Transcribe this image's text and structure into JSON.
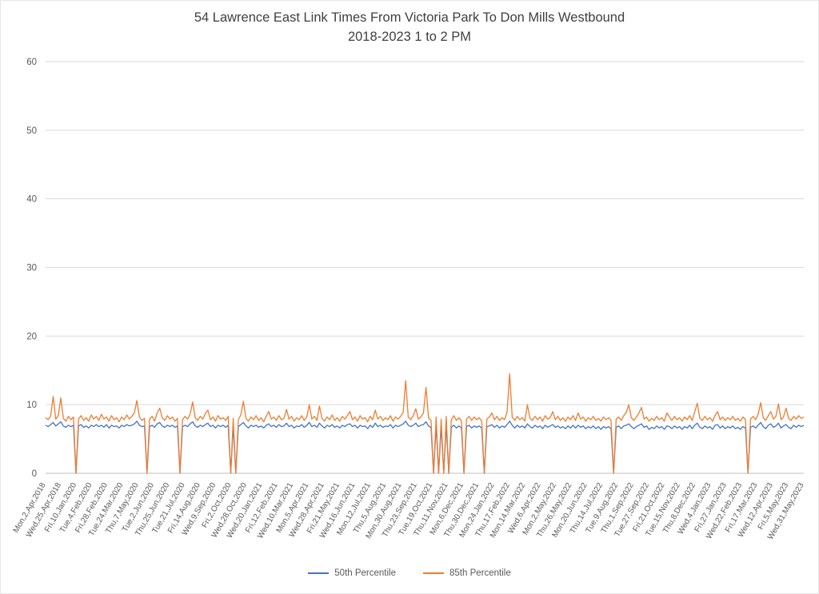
{
  "chart_data": {
    "type": "line",
    "title": "54 Lawrence East Link Times From Victoria Park To Don Mills Westbound",
    "subtitle": "2018-2023 1 to 2 PM",
    "ylim": [
      0,
      60
    ],
    "yticks": [
      0,
      10,
      20,
      30,
      40,
      50,
      60
    ],
    "grid": true,
    "legend_position": "bottom",
    "gridline_color": "#d9d9d9",
    "axis_label_color": "#595959",
    "categories": [
      "Mon,2,Apr,2018",
      "Wed,25,Apr,2018",
      "Fri,10,Jan,2020",
      "Tue,4,Feb,2020",
      "Fri,28,Feb,2020",
      "Tue,24,Mar,2020",
      "Thu,7,May,2020",
      "Tue,2,Jun,2020",
      "Thu,25,Jun,2020",
      "Tue,21,Jul,2020",
      "Fri,14,Aug,2020",
      "Wed,9,Sep,2020",
      "Fri,2,Oct,2020",
      "Wed,28,Oct,2020",
      "Wed,20,Jan,2021",
      "Fri,12,Feb,2021",
      "Wed,10,Mar,2021",
      "Mon,5,Apr,2021",
      "Wed,28,Apr,2021",
      "Fri,21,May,2021",
      "Wed,16,Jun,2021",
      "Mon,12,Jul,2021",
      "Thu,5,Aug,2021",
      "Mon,30,Aug,2021",
      "Thu,23,Sep,2021",
      "Tue,19,Oct,2021",
      "Thu,11,Nov,2021",
      "Mon,6,Dec,2021",
      "Thu,30,Dec,2021",
      "Mon,24,Jan,2022",
      "Thu,17,Feb,2022",
      "Mon,14,Mar,2022",
      "Wed,6,Apr,2022",
      "Mon,2,May,2022",
      "Thu,26,May,2022",
      "Mon,20,Jun,2022",
      "Thu,14,Jul,2022",
      "Tue,9,Aug,2022",
      "Thu,1,Sep,2022",
      "Tue,27,Sep,2022",
      "Fri,21,Oct,2022",
      "Tue,15,Nov,2022",
      "Thu,8,Dec,2022",
      "Wed,4,Jan,2023",
      "Fri,27,Jan,2023",
      "Wed,22,Feb,2023",
      "Fri,17,Mar,2023",
      "Wed,12,Apr,2023",
      "Fri,5,May,2023",
      "Wed,31,May,2023"
    ],
    "series": [
      {
        "name": "50th Percentile",
        "color": "#4472c4",
        "values": [
          7.0,
          6.8,
          7.1,
          7.4,
          6.9,
          7.2,
          7.5,
          6.9,
          6.7,
          7.0,
          6.8,
          7.0,
          0,
          6.9,
          7.1,
          6.7,
          6.9,
          6.6,
          7.0,
          6.8,
          7.1,
          6.8,
          7.0,
          6.7,
          7.1,
          6.6,
          7.0,
          6.8,
          6.9,
          6.6,
          7.0,
          6.8,
          7.1,
          6.9,
          7.0,
          7.2,
          7.6,
          7.0,
          6.8,
          6.9,
          0,
          6.8,
          7.0,
          6.7,
          7.2,
          7.4,
          6.9,
          6.7,
          7.0,
          6.8,
          7.0,
          6.7,
          6.9,
          0,
          6.8,
          7.0,
          6.8,
          7.2,
          7.5,
          6.9,
          6.7,
          7.0,
          6.8,
          7.1,
          7.3,
          6.8,
          7.0,
          6.6,
          7.0,
          6.8,
          7.0,
          6.7,
          7.0,
          0,
          6.9,
          0,
          6.8,
          7.1,
          7.4,
          6.9,
          6.6,
          7.0,
          6.8,
          7.0,
          6.7,
          6.9,
          6.6,
          7.0,
          7.2,
          6.8,
          7.0,
          6.7,
          7.1,
          6.8,
          6.9,
          7.3,
          6.8,
          7.0,
          6.6,
          6.9,
          6.8,
          7.1,
          6.7,
          7.0,
          7.4,
          6.8,
          7.0,
          6.7,
          7.3,
          6.9,
          6.6,
          7.0,
          6.8,
          7.1,
          6.7,
          6.9,
          6.6,
          7.0,
          6.8,
          7.1,
          7.2,
          6.8,
          7.0,
          6.6,
          7.0,
          6.8,
          6.9,
          6.5,
          7.0,
          6.7,
          7.3,
          6.8,
          7.0,
          6.7,
          6.9,
          6.8,
          7.1,
          6.6,
          7.0,
          6.8,
          7.0,
          7.2,
          7.6,
          7.0,
          6.8,
          7.0,
          7.3,
          6.8,
          7.0,
          7.1,
          7.5,
          6.9,
          6.7,
          0,
          7.0,
          0,
          6.8,
          0,
          7.0,
          0,
          6.7,
          7.0,
          6.6,
          6.9,
          6.6,
          0,
          6.8,
          7.0,
          6.6,
          6.9,
          6.7,
          6.9,
          6.6,
          0,
          6.8,
          6.9,
          7.1,
          6.7,
          7.0,
          6.6,
          6.9,
          6.7,
          7.1,
          7.6,
          7.0,
          6.6,
          7.0,
          6.7,
          6.9,
          6.6,
          7.2,
          6.8,
          6.6,
          7.0,
          6.7,
          6.9,
          6.5,
          7.0,
          6.7,
          6.9,
          7.1,
          6.7,
          6.9,
          6.6,
          6.8,
          6.5,
          6.9,
          6.6,
          7.0,
          6.6,
          7.0,
          6.7,
          6.9,
          6.5,
          6.8,
          6.6,
          6.9,
          6.5,
          6.8,
          6.4,
          6.8,
          6.6,
          6.8,
          6.5,
          0,
          6.7,
          6.9,
          6.5,
          6.9,
          7.0,
          7.2,
          6.8,
          6.5,
          6.8,
          7.0,
          7.2,
          6.7,
          6.9,
          6.4,
          6.7,
          6.5,
          6.9,
          6.6,
          6.8,
          6.4,
          6.9,
          6.8,
          6.5,
          6.9,
          6.6,
          6.8,
          6.4,
          6.8,
          6.6,
          7.0,
          6.5,
          7.0,
          7.3,
          6.7,
          6.5,
          6.9,
          6.6,
          6.8,
          6.4,
          7.0,
          7.1,
          6.6,
          6.9,
          6.5,
          6.8,
          6.6,
          6.9,
          6.5,
          6.7,
          6.4,
          6.8,
          6.6,
          0,
          6.7,
          6.9,
          6.6,
          7.0,
          7.4,
          6.8,
          6.5,
          7.0,
          7.2,
          6.7,
          6.9,
          7.3,
          6.6,
          6.9,
          7.1,
          6.7,
          6.5,
          7.0,
          6.7,
          7.0,
          6.8,
          7.0
        ]
      },
      {
        "name": "85th Percentile",
        "color": "#ed7d31",
        "values": [
          8.1,
          7.8,
          8.3,
          11.2,
          7.9,
          8.4,
          11.0,
          8.0,
          7.6,
          8.3,
          7.8,
          8.2,
          0,
          7.9,
          8.4,
          7.7,
          8.1,
          7.6,
          8.5,
          7.9,
          8.3,
          7.7,
          8.6,
          7.9,
          8.2,
          7.6,
          8.4,
          7.8,
          8.1,
          7.5,
          8.2,
          7.8,
          8.5,
          7.9,
          8.3,
          8.8,
          10.6,
          8.2,
          7.7,
          8.0,
          0,
          7.9,
          8.3,
          7.6,
          8.8,
          9.5,
          8.1,
          7.7,
          8.4,
          7.9,
          8.2,
          7.6,
          8.0,
          0,
          7.8,
          8.3,
          7.9,
          8.6,
          10.4,
          8.1,
          7.7,
          8.3,
          7.9,
          8.7,
          9.2,
          7.8,
          8.2,
          7.6,
          8.4,
          7.9,
          8.1,
          7.7,
          8.3,
          0,
          8.0,
          0,
          7.8,
          8.5,
          10.5,
          8.0,
          7.6,
          8.2,
          7.8,
          8.4,
          7.7,
          8.1,
          7.5,
          8.3,
          9.0,
          7.9,
          8.2,
          7.7,
          8.4,
          7.8,
          8.0,
          9.3,
          7.9,
          8.3,
          7.6,
          8.1,
          7.8,
          8.4,
          7.7,
          8.2,
          10.0,
          7.9,
          8.3,
          7.7,
          9.8,
          8.0,
          7.6,
          8.2,
          7.8,
          8.5,
          7.7,
          8.1,
          7.6,
          8.3,
          7.9,
          8.4,
          9.0,
          7.8,
          8.2,
          7.6,
          8.4,
          7.9,
          8.1,
          7.5,
          8.3,
          7.8,
          9.2,
          7.9,
          8.3,
          7.7,
          8.1,
          7.8,
          8.4,
          7.6,
          8.2,
          7.9,
          8.3,
          8.9,
          13.5,
          8.2,
          7.8,
          8.4,
          9.4,
          7.9,
          8.2,
          8.8,
          12.5,
          8.1,
          7.7,
          0,
          8.2,
          0,
          7.9,
          0,
          8.3,
          0,
          7.8,
          8.4,
          7.7,
          8.1,
          7.6,
          0,
          7.9,
          8.3,
          7.7,
          8.2,
          7.8,
          8.1,
          7.6,
          0,
          7.9,
          8.2,
          8.8,
          7.8,
          8.3,
          7.7,
          8.1,
          7.8,
          8.9,
          14.5,
          8.2,
          7.7,
          8.3,
          7.8,
          8.1,
          7.6,
          10.0,
          8.0,
          7.7,
          8.3,
          7.8,
          8.2,
          7.6,
          8.4,
          7.9,
          8.1,
          9.0,
          7.8,
          8.3,
          7.7,
          8.1,
          7.6,
          8.2,
          7.8,
          8.4,
          7.7,
          8.8,
          7.9,
          8.2,
          7.6,
          8.1,
          7.8,
          8.3,
          7.7,
          8.0,
          7.6,
          8.2,
          7.8,
          8.1,
          7.7,
          0,
          7.9,
          8.2,
          7.7,
          8.4,
          8.9,
          10.0,
          8.1,
          7.7,
          8.2,
          8.8,
          9.6,
          7.9,
          8.2,
          7.6,
          8.0,
          7.7,
          8.3,
          7.8,
          8.1,
          7.6,
          8.8,
          8.2,
          7.7,
          8.3,
          7.8,
          8.1,
          7.6,
          8.2,
          7.8,
          8.4,
          7.7,
          9.0,
          10.2,
          8.0,
          7.7,
          8.3,
          7.8,
          8.1,
          7.6,
          8.4,
          9.0,
          7.8,
          8.2,
          7.7,
          8.1,
          7.8,
          8.3,
          7.7,
          8.0,
          7.6,
          8.2,
          7.8,
          0,
          7.9,
          8.3,
          7.8,
          8.6,
          10.3,
          8.1,
          7.7,
          8.4,
          9.0,
          7.9,
          8.3,
          10.1,
          7.8,
          8.2,
          9.5,
          8.0,
          7.7,
          8.3,
          7.9,
          8.4,
          8.0,
          8.2
        ]
      }
    ]
  }
}
